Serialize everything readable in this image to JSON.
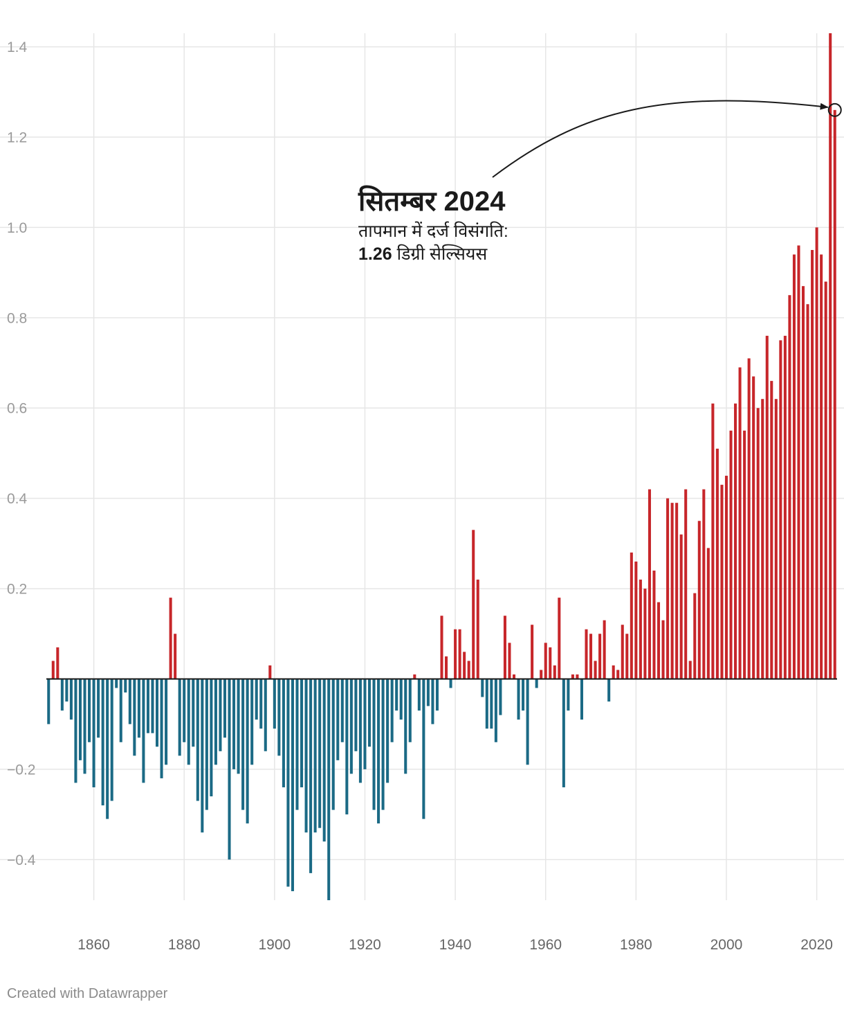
{
  "chart_data": {
    "type": "bar",
    "title": "",
    "xlabel": "",
    "ylabel": "",
    "x_start": 1850,
    "x_end": 2024,
    "ylim": [
      -0.49,
      1.43
    ],
    "y_ticks": [
      -0.4,
      -0.2,
      0.2,
      0.4,
      0.6,
      0.8,
      1.0,
      1.2,
      1.4
    ],
    "y_tick_labels": [
      "−0.4",
      "−0.2",
      "0.2",
      "0.4",
      "0.6",
      "0.8",
      "1.0",
      "1.2",
      "1.4"
    ],
    "x_ticks": [
      1860,
      1880,
      1900,
      1920,
      1940,
      1960,
      1980,
      2000,
      2020
    ],
    "x_tick_labels": [
      "1860",
      "1880",
      "1900",
      "1920",
      "1940",
      "1960",
      "1980",
      "2000",
      "2020"
    ],
    "grid": true,
    "positive_color": "#c7262a",
    "negative_color": "#1b6a85",
    "values": [
      -0.1,
      0.04,
      0.07,
      -0.07,
      -0.05,
      -0.09,
      -0.23,
      -0.18,
      -0.21,
      -0.14,
      -0.24,
      -0.13,
      -0.28,
      -0.31,
      -0.27,
      -0.02,
      -0.14,
      -0.03,
      -0.1,
      -0.17,
      -0.13,
      -0.23,
      -0.12,
      -0.12,
      -0.15,
      -0.22,
      -0.19,
      0.18,
      0.1,
      -0.17,
      -0.14,
      -0.19,
      -0.15,
      -0.27,
      -0.34,
      -0.29,
      -0.26,
      -0.19,
      -0.16,
      -0.13,
      -0.4,
      -0.2,
      -0.21,
      -0.29,
      -0.32,
      -0.19,
      -0.09,
      -0.11,
      -0.16,
      0.03,
      -0.11,
      -0.17,
      -0.24,
      -0.46,
      -0.47,
      -0.29,
      -0.24,
      -0.34,
      -0.43,
      -0.34,
      -0.33,
      -0.36,
      -0.49,
      -0.29,
      -0.18,
      -0.14,
      -0.3,
      -0.21,
      -0.16,
      -0.23,
      -0.2,
      -0.15,
      -0.29,
      -0.32,
      -0.29,
      -0.23,
      -0.14,
      -0.07,
      -0.09,
      -0.21,
      -0.14,
      0.01,
      -0.07,
      -0.31,
      -0.06,
      -0.1,
      -0.07,
      0.14,
      0.05,
      -0.02,
      0.11,
      0.11,
      0.06,
      0.04,
      0.33,
      0.22,
      -0.04,
      -0.11,
      -0.11,
      -0.14,
      -0.08,
      0.14,
      0.08,
      0.01,
      -0.09,
      -0.07,
      -0.19,
      0.12,
      -0.02,
      0.02,
      0.08,
      0.07,
      0.03,
      0.18,
      -0.24,
      -0.07,
      0.01,
      0.01,
      -0.09,
      0.11,
      0.1,
      0.04,
      0.1,
      0.13,
      -0.05,
      0.03,
      0.02,
      0.12,
      0.1,
      0.28,
      0.26,
      0.22,
      0.2,
      0.42,
      0.24,
      0.17,
      0.13,
      0.4,
      0.39,
      0.39,
      0.32,
      0.42,
      0.04,
      0.19,
      0.35,
      0.42,
      0.29,
      0.61,
      0.51,
      0.43,
      0.45,
      0.55,
      0.61,
      0.69,
      0.55,
      0.71,
      0.67,
      0.6,
      0.62,
      0.76,
      0.66,
      0.62,
      0.75,
      0.76,
      0.85,
      0.94,
      0.96,
      0.87,
      0.83,
      0.95,
      1.0,
      0.94,
      0.88,
      1.43,
      1.26
    ],
    "annotation": {
      "title": "सितम्बर 2024",
      "line1": "तापमान में दर्ज विसंगति:",
      "value": "1.26",
      "unit": "डिग्री सेल्सियस",
      "target_year": 2024,
      "target_value": 1.26
    }
  },
  "footer": {
    "credit": "Created with Datawrapper"
  }
}
